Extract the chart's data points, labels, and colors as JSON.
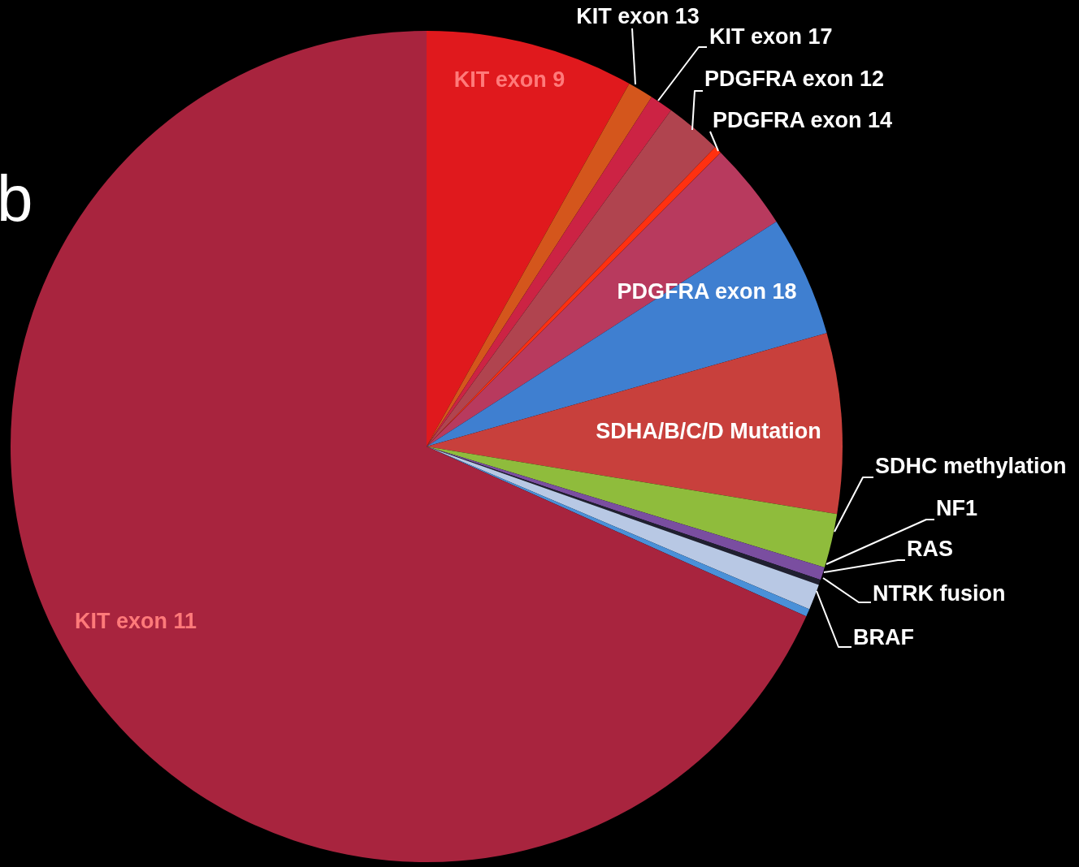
{
  "chart_data": {
    "type": "pie",
    "categories": [
      "KIT exon 9",
      "KIT exon 13",
      "KIT exon 17",
      "PDGFRA exon 12",
      "PDGFRA exon 14",
      null,
      "PDGFRA exon 18",
      "SDHA/B/C/D Mutation",
      "SDHC methylation",
      "NF1",
      "RAS",
      "NTRK fusion",
      "BRAF",
      "KIT exon 11"
    ],
    "values": [
      8.1,
      1.0,
      0.9,
      2.2,
      0.3,
      3.4,
      4.7,
      7.0,
      2.1,
      0.5,
      0.2,
      1.0,
      0.3,
      68.3
    ],
    "colors": [
      "#e0191d",
      "#d4561c",
      "#cc2344",
      "#b0444f",
      "#ff3010",
      "#b83a5e",
      "#3f7fd0",
      "#c8403c",
      "#8fbc3c",
      "#7a4ea0",
      "#202030",
      "#b8c8e4",
      "#4a90d8",
      "#a8243e"
    ],
    "annotations": [
      "b"
    ]
  }
}
